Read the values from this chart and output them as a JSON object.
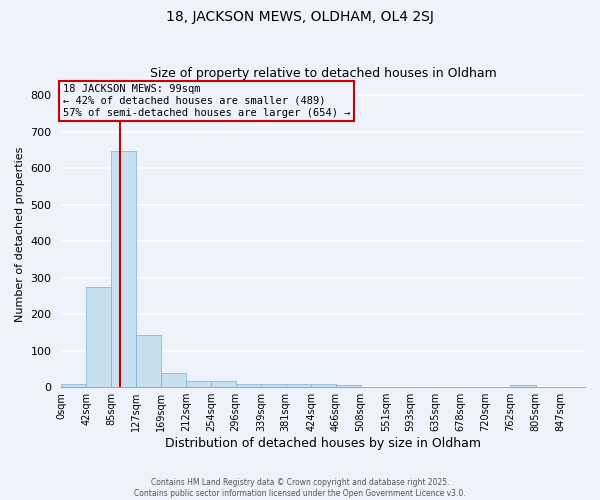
{
  "title": "18, JACKSON MEWS, OLDHAM, OL4 2SJ",
  "subtitle": "Size of property relative to detached houses in Oldham",
  "xlabel": "Distribution of detached houses by size in Oldham",
  "ylabel": "Number of detached properties",
  "bar_color": "#c8dff0",
  "bar_edge_color": "#7ab0d4",
  "background_color": "#eef2fb",
  "grid_color": "#ffffff",
  "bin_labels": [
    "0sqm",
    "42sqm",
    "85sqm",
    "127sqm",
    "169sqm",
    "212sqm",
    "254sqm",
    "296sqm",
    "339sqm",
    "381sqm",
    "424sqm",
    "466sqm",
    "508sqm",
    "551sqm",
    "593sqm",
    "635sqm",
    "678sqm",
    "720sqm",
    "762sqm",
    "805sqm",
    "847sqm"
  ],
  "bar_values": [
    8,
    275,
    648,
    142,
    40,
    18,
    18,
    8,
    8,
    8,
    8,
    5,
    0,
    0,
    0,
    0,
    0,
    0,
    5,
    0,
    0
  ],
  "bin_edges": [
    0,
    42,
    85,
    127,
    169,
    212,
    254,
    296,
    339,
    381,
    424,
    466,
    508,
    551,
    593,
    635,
    678,
    720,
    762,
    805,
    847,
    889
  ],
  "property_size": 99,
  "vline_color": "#cc0000",
  "annotation_line1": "18 JACKSON MEWS: 99sqm",
  "annotation_line2": "← 42% of detached houses are smaller (489)",
  "annotation_line3": "57% of semi-detached houses are larger (654) →",
  "annotation_box_color": "#cc0000",
  "ylim": [
    0,
    840
  ],
  "yticks": [
    0,
    100,
    200,
    300,
    400,
    500,
    600,
    700,
    800
  ],
  "footer_line1": "Contains HM Land Registry data © Crown copyright and database right 2025.",
  "footer_line2": "Contains public sector information licensed under the Open Government Licence v3.0."
}
